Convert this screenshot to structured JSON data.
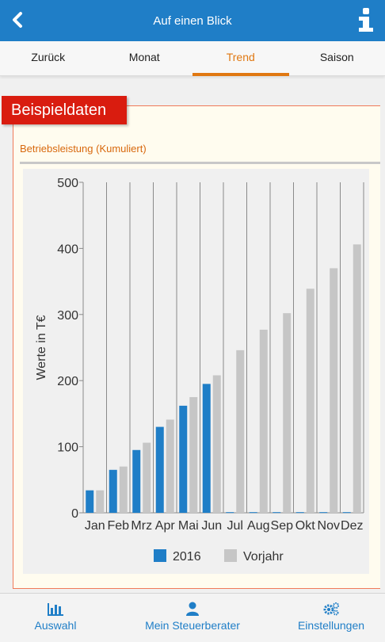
{
  "header": {
    "title": "Auf einen Blick",
    "back_icon": "chevron-left-icon",
    "info_icon": "info-icon"
  },
  "tabs": [
    {
      "label": "Zurück",
      "active": false
    },
    {
      "label": "Monat",
      "active": false
    },
    {
      "label": "Trend",
      "active": true
    },
    {
      "label": "Saison",
      "active": false
    }
  ],
  "badge": "Beispieldaten",
  "section_title": "Betriebsleistung (Kumuliert)",
  "colors": {
    "primary": "#1f7ec7",
    "accent": "#e07812",
    "badge": "#d91c0f",
    "series_2016": "#1f7ec7",
    "series_prev": "#c6c6c6"
  },
  "chart_data": {
    "type": "bar",
    "ylabel": "Werte in T€",
    "ylim": [
      0,
      500
    ],
    "yticks": [
      0,
      100,
      200,
      300,
      400,
      500
    ],
    "categories": [
      "Jan",
      "Feb",
      "Mrz",
      "Apr",
      "Mai",
      "Jun",
      "Jul",
      "Aug",
      "Sep",
      "Okt",
      "Nov",
      "Dez"
    ],
    "series": [
      {
        "name": "2016",
        "values": [
          34,
          65,
          95,
          130,
          162,
          195,
          1,
          1,
          1,
          1,
          1,
          1
        ]
      },
      {
        "name": "Vorjahr",
        "values": [
          34,
          70,
          106,
          141,
          175,
          208,
          246,
          277,
          302,
          339,
          370,
          406
        ]
      }
    ],
    "grid": true,
    "legend_position": "bottom"
  },
  "bottom_nav": [
    {
      "label": "Auswahl",
      "icon": "bar-chart-icon"
    },
    {
      "label": "Mein Steuerberater",
      "icon": "user-icon"
    },
    {
      "label": "Einstellungen",
      "icon": "gears-icon"
    }
  ]
}
